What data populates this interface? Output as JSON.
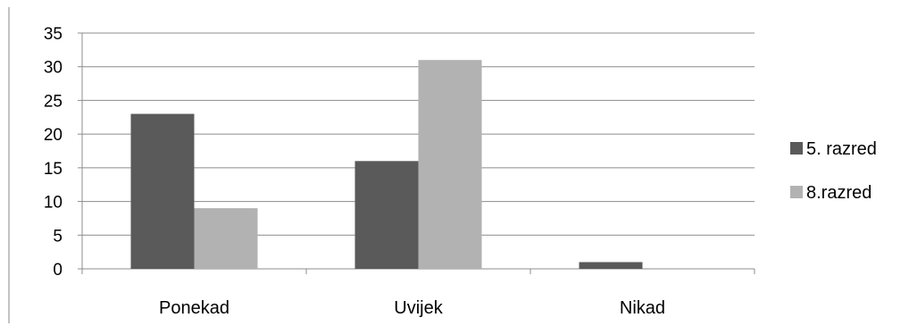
{
  "chart_data": {
    "type": "bar",
    "categories": [
      "Ponekad",
      "Uvijek",
      "Nikad"
    ],
    "series": [
      {
        "name": "5. razred",
        "values": [
          23,
          16,
          1
        ],
        "color": "#5a5a5a"
      },
      {
        "name": "8.razred",
        "values": [
          9,
          31,
          0
        ],
        "color": "#b2b2b2"
      }
    ],
    "y_ticks": [
      "0",
      "5",
      "10",
      "15",
      "20",
      "25",
      "30",
      "35"
    ],
    "ylim": [
      0,
      35
    ],
    "grid": true,
    "legend_position": "right",
    "gridline_color": "#8c8c8c",
    "axis_color": "#8c8c8c"
  }
}
